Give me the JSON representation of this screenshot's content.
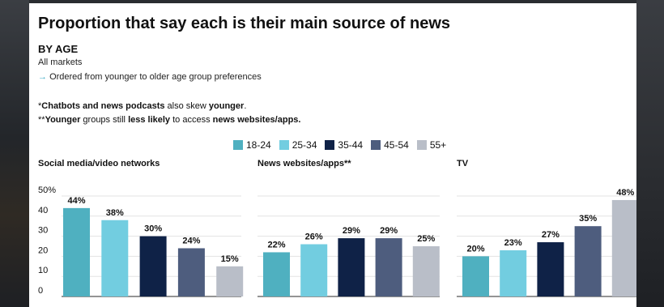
{
  "header": {
    "title": "Proportion that say each is their main source of news",
    "subtitle": "BY AGE",
    "markets": "All markets",
    "order_arrow": "→",
    "order_note": "Ordered from younger to older age group preferences"
  },
  "notes": [
    [
      {
        "t": "*",
        "b": false
      },
      {
        "t": "Chatbots and news podcasts",
        "b": true
      },
      {
        "t": " also skew ",
        "b": false
      },
      {
        "t": "younger",
        "b": true
      },
      {
        "t": ".",
        "b": false
      }
    ],
    [
      {
        "t": "**",
        "b": false
      },
      {
        "t": "Younger",
        "b": true
      },
      {
        "t": " groups still ",
        "b": false
      },
      {
        "t": "less likely",
        "b": true
      },
      {
        "t": " to access ",
        "b": false
      },
      {
        "t": "news websites/apps.",
        "b": true
      }
    ]
  ],
  "colors": {
    "18-24": "#4fb0c0",
    "25-34": "#72cde0",
    "35-44": "#0f2247",
    "45-54": "#4e5d7e",
    "55+": "#b9bec8"
  },
  "chart_data": {
    "type": "bar",
    "categories": [
      "18-24",
      "25-34",
      "35-44",
      "45-54",
      "55+"
    ],
    "legend": [
      "18-24",
      "25-34",
      "35-44",
      "45-54",
      "55+"
    ],
    "ylim": [
      0,
      50
    ],
    "yticks": [
      "50%",
      "40",
      "30",
      "20",
      "10",
      "0"
    ],
    "grid": true,
    "legend_placement": "top-center",
    "panels": [
      {
        "title": "Social media/video networks",
        "values": [
          44,
          38,
          30,
          24,
          15
        ]
      },
      {
        "title": "News websites/apps**",
        "values": [
          22,
          26,
          29,
          29,
          25
        ]
      },
      {
        "title": "TV",
        "values": [
          20,
          23,
          27,
          35,
          48
        ]
      }
    ]
  }
}
